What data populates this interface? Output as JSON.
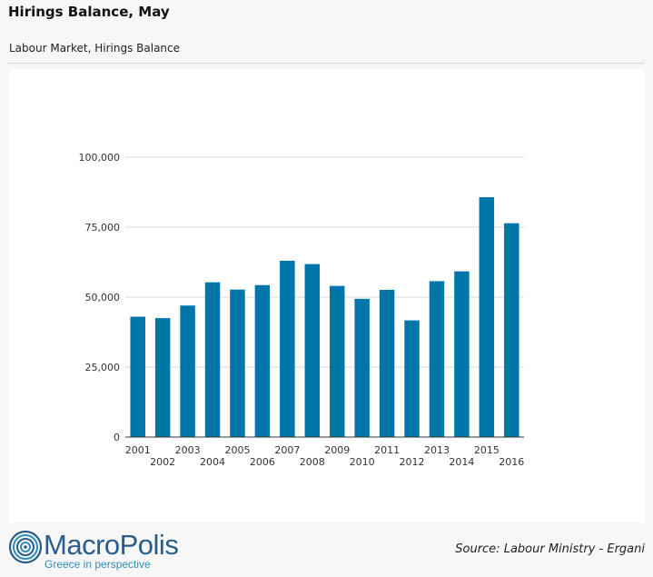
{
  "header": {
    "title": "Hirings Balance, May",
    "subtitle": "Labour Market, Hirings Balance"
  },
  "footer": {
    "brand": "MacroPolis",
    "tagline": "Greece in perspective",
    "source": "Source: Labour Ministry - Ergani"
  },
  "colors": {
    "bar": "#0077a8",
    "grid": "#d9d9d9",
    "axis": "#333333",
    "brand": "#2a5d8c",
    "tagline": "#2b8fb7"
  },
  "chart_data": {
    "type": "bar",
    "categories": [
      "2001",
      "2002",
      "2003",
      "2004",
      "2005",
      "2006",
      "2007",
      "2008",
      "2009",
      "2010",
      "2011",
      "2012",
      "2013",
      "2014",
      "2015",
      "2016"
    ],
    "values": [
      43000,
      42500,
      47000,
      55300,
      52700,
      54300,
      63000,
      61800,
      54000,
      49400,
      52600,
      41700,
      55700,
      59200,
      85700,
      76400
    ],
    "yticks": [
      "0",
      "25,000",
      "50,000",
      "75,000",
      "100,000"
    ],
    "ylim": [
      0,
      100000
    ],
    "grid": true,
    "legend": "none"
  }
}
